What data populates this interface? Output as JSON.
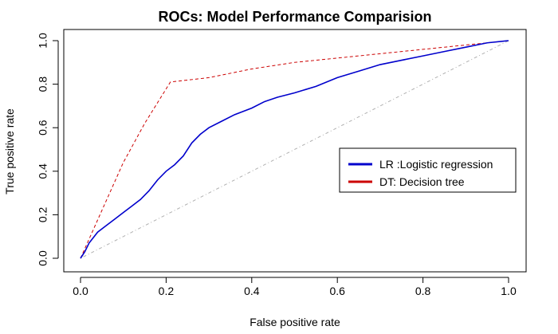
{
  "chart_data": {
    "type": "line",
    "title": "ROCs: Model Performance Comparision",
    "xlabel": "False positive rate",
    "ylabel": "True positive rate",
    "xlim": [
      0,
      1
    ],
    "ylim": [
      0,
      1
    ],
    "xticks": [
      "0.0",
      "0.2",
      "0.4",
      "0.6",
      "0.8",
      "1.0"
    ],
    "yticks": [
      "0.0",
      "0.2",
      "0.4",
      "0.6",
      "0.8",
      "1.0"
    ],
    "grid": false,
    "legend_position": "right",
    "series": [
      {
        "name": "LR :Logistic regression",
        "color": "#0000cc",
        "style": "solid",
        "x": [
          0.0,
          0.01,
          0.02,
          0.04,
          0.06,
          0.08,
          0.1,
          0.12,
          0.14,
          0.16,
          0.18,
          0.2,
          0.22,
          0.24,
          0.26,
          0.28,
          0.3,
          0.33,
          0.36,
          0.4,
          0.43,
          0.46,
          0.5,
          0.55,
          0.6,
          0.65,
          0.7,
          0.75,
          0.8,
          0.85,
          0.9,
          0.95,
          1.0
        ],
        "y": [
          0.0,
          0.03,
          0.07,
          0.12,
          0.15,
          0.18,
          0.21,
          0.24,
          0.27,
          0.31,
          0.36,
          0.4,
          0.43,
          0.47,
          0.53,
          0.57,
          0.6,
          0.63,
          0.66,
          0.69,
          0.72,
          0.74,
          0.76,
          0.79,
          0.83,
          0.86,
          0.89,
          0.91,
          0.93,
          0.95,
          0.97,
          0.99,
          1.0
        ]
      },
      {
        "name": "DT: Decision tree",
        "color": "#cc0000",
        "style": "dashed",
        "x": [
          0.0,
          0.05,
          0.1,
          0.15,
          0.21,
          0.3,
          0.4,
          0.5,
          0.6,
          0.7,
          0.8,
          0.9,
          0.95,
          1.0
        ],
        "y": [
          0.0,
          0.22,
          0.44,
          0.62,
          0.81,
          0.83,
          0.87,
          0.9,
          0.92,
          0.94,
          0.96,
          0.98,
          0.99,
          1.0
        ]
      },
      {
        "color": "#b0b0b0",
        "style": "dotdash",
        "x": [
          0.0,
          1.0
        ],
        "y": [
          0.0,
          1.0
        ]
      }
    ]
  }
}
